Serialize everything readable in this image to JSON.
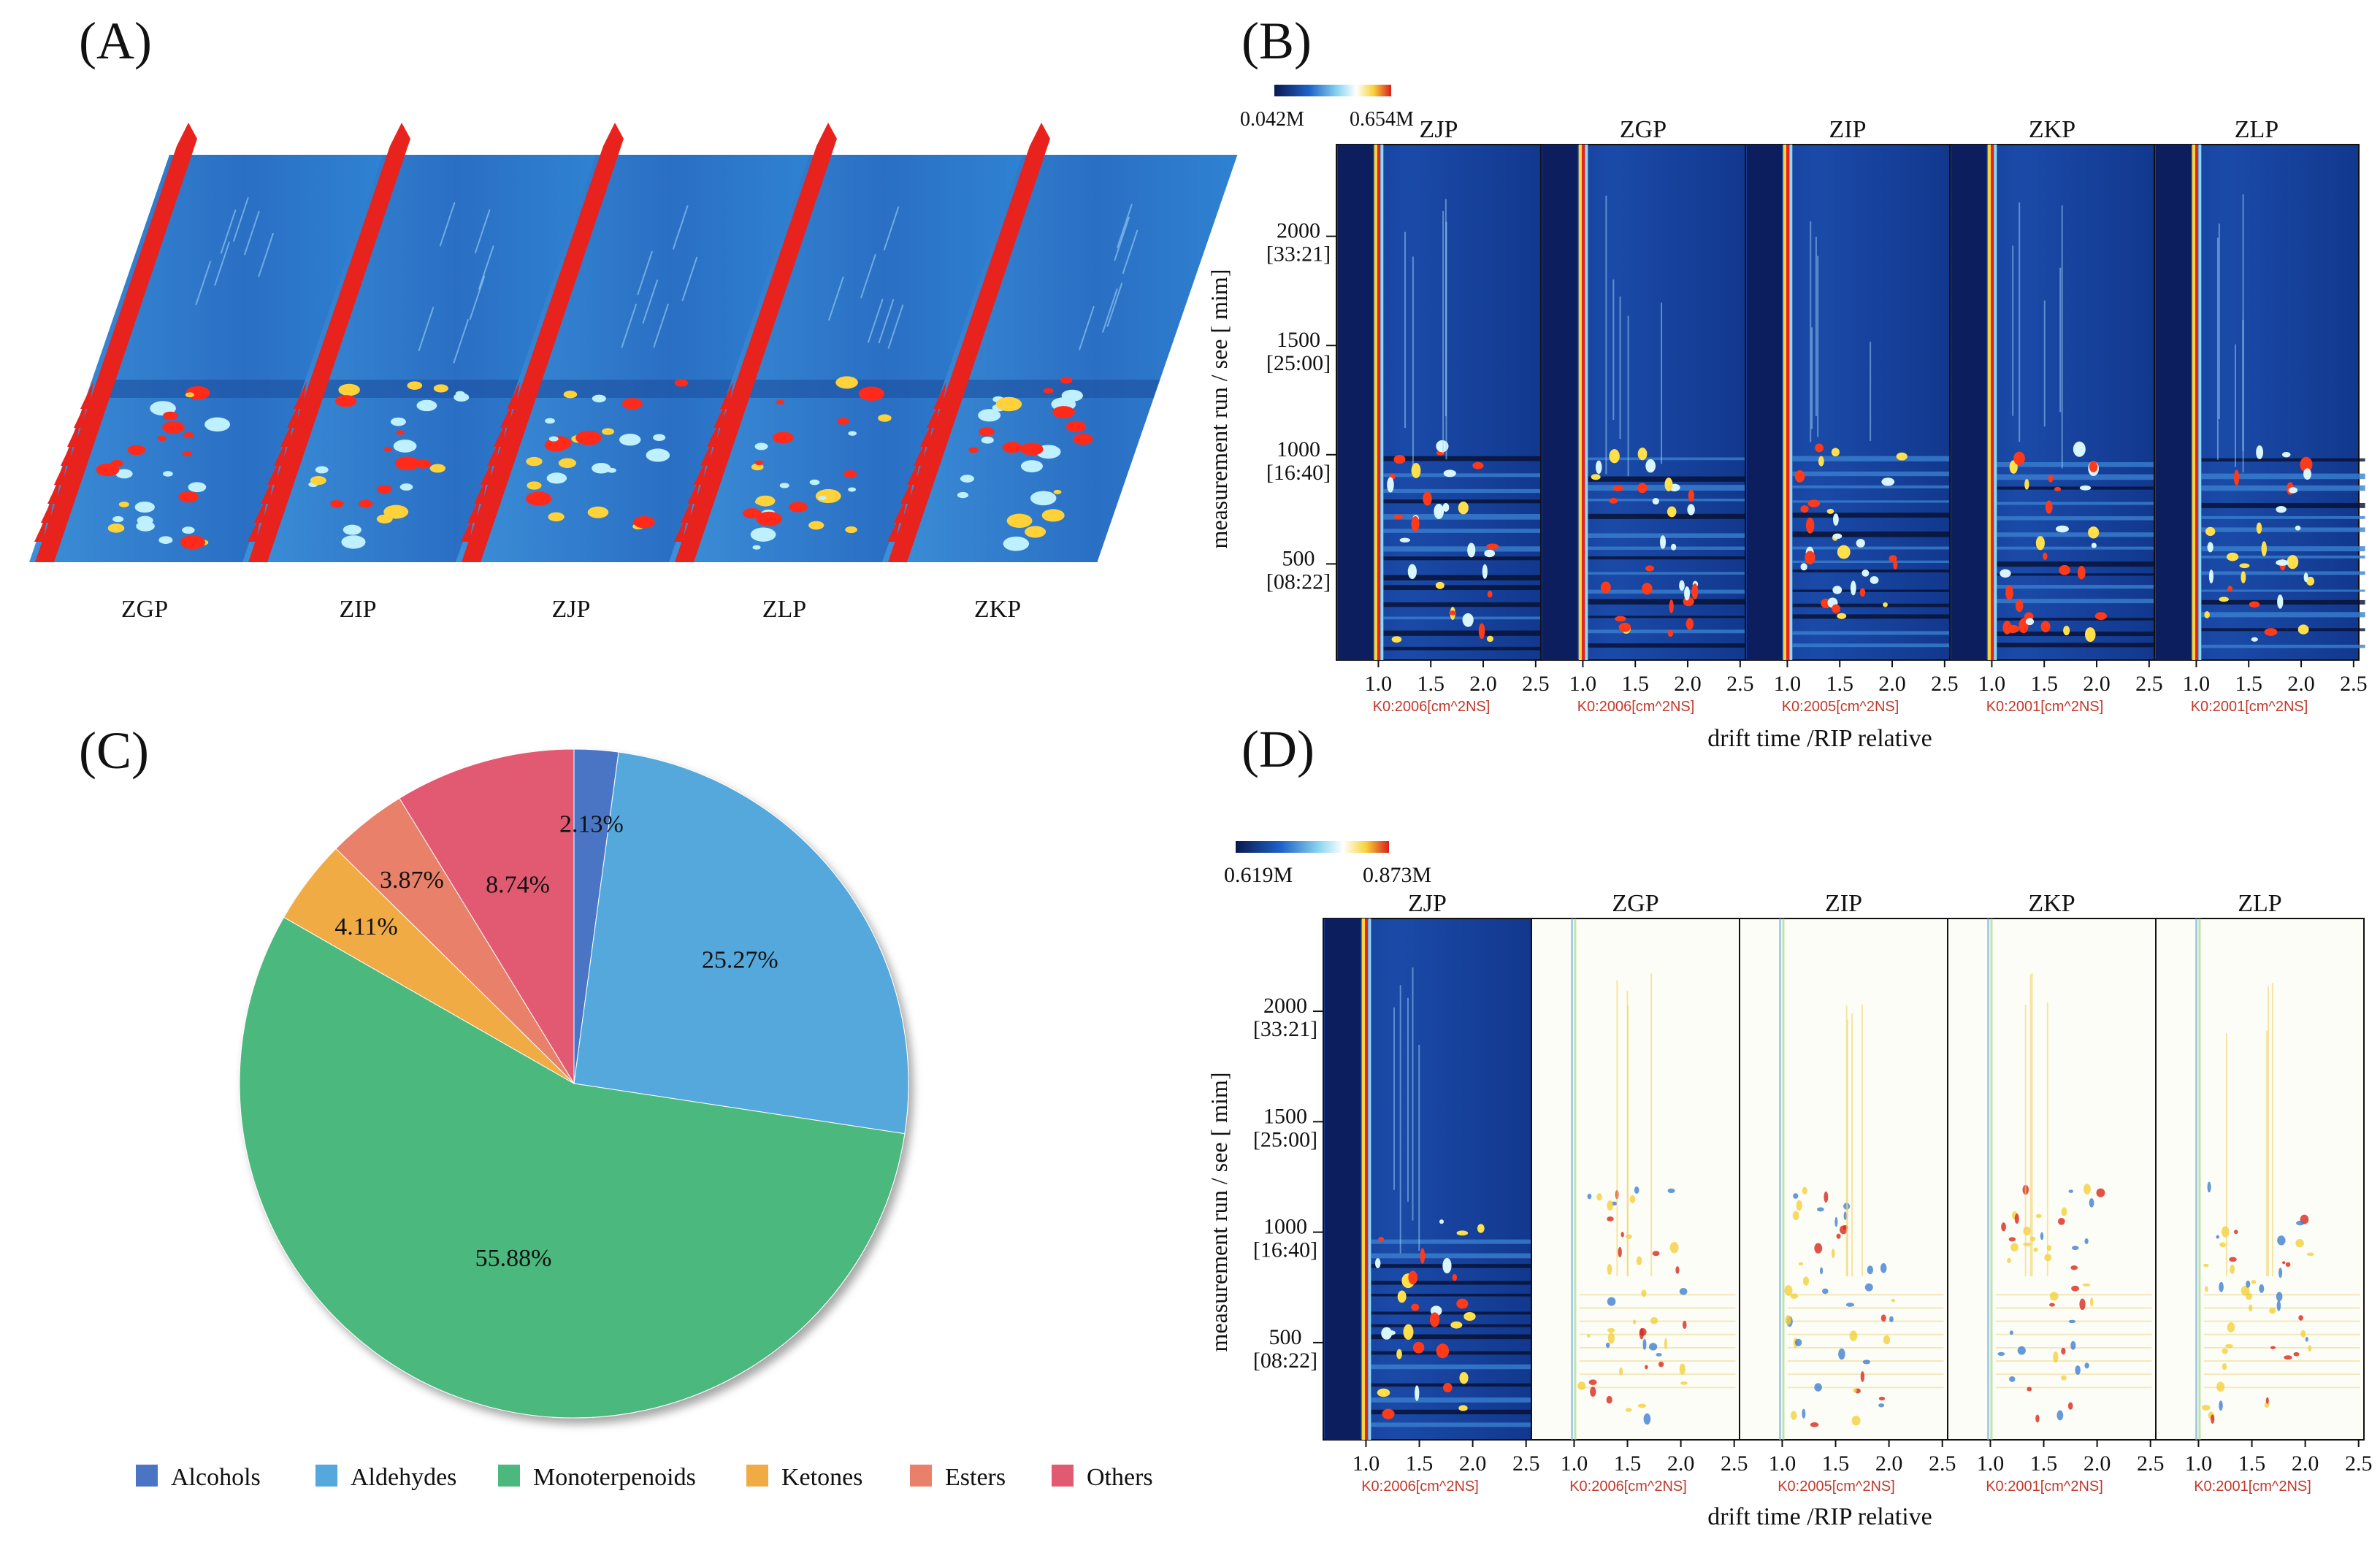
{
  "panels": {
    "A": {
      "label": "(A)",
      "samples": [
        "ZGP",
        "ZIP",
        "ZJP",
        "ZLP",
        "ZKP"
      ]
    },
    "B": {
      "label": "(B)",
      "colorbar_min": "0.042M",
      "colorbar_max": "0.654M",
      "samples": [
        "ZJP",
        "ZGP",
        "ZIP",
        "ZKP",
        "ZLP"
      ],
      "k0_labels": [
        "K0:2006[cm^2NS]",
        "K0:2006[cm^2NS]",
        "K0:2005[cm^2NS]",
        "K0:2001[cm^2NS]",
        "K0:2001[cm^2NS]"
      ],
      "y_label": "measurement run / see [ mim]",
      "x_label": "drift time /RIP relative"
    },
    "D": {
      "label": "(D)",
      "colorbar_min": "0.619M",
      "colorbar_max": "0.873M",
      "samples": [
        "ZJP",
        "ZGP",
        "ZIP",
        "ZKP",
        "ZLP"
      ],
      "k0_labels": [
        "K0:2006[cm^2NS]",
        "K0:2006[cm^2NS]",
        "K0:2005[cm^2NS]",
        "K0:2001[cm^2NS]",
        "K0:2001[cm^2NS]"
      ],
      "y_label": "measurement run / see [ mim]",
      "x_label": "drift time /RIP relative"
    }
  },
  "axes": {
    "y_ticks": [
      {
        "value": 500,
        "main": "500",
        "sub": "[08:22]"
      },
      {
        "value": 1000,
        "main": "1000",
        "sub": "[16:40]"
      },
      {
        "value": 1500,
        "main": "1500",
        "sub": "[25:00]"
      },
      {
        "value": 2000,
        "main": "2000",
        "sub": "[33:21]"
      }
    ],
    "y_range": [
      60,
      2420
    ],
    "x_ticks": [
      "1.0",
      "1.5",
      "2.0",
      "2.5"
    ],
    "x_tick_values": [
      1.0,
      1.5,
      2.0,
      2.5
    ],
    "x_range": [
      0.6,
      2.55
    ]
  },
  "chart_data": {
    "type": "pie",
    "panel_label": "(C)",
    "labels": [
      "Alcohols",
      "Aldehydes",
      "Monoterpenoids",
      "Ketones",
      "Esters",
      "Others"
    ],
    "values": [
      2.13,
      25.27,
      55.88,
      4.11,
      3.87,
      8.74
    ],
    "value_labels": [
      "2.13%",
      "25.27%",
      "55.88%",
      "4.11%",
      "3.87%",
      "8.74%"
    ],
    "colors": [
      "#4a74c4",
      "#55a8dc",
      "#4cb87e",
      "#f0ab45",
      "#e8806a",
      "#e25a72"
    ],
    "legend_position": "bottom"
  }
}
